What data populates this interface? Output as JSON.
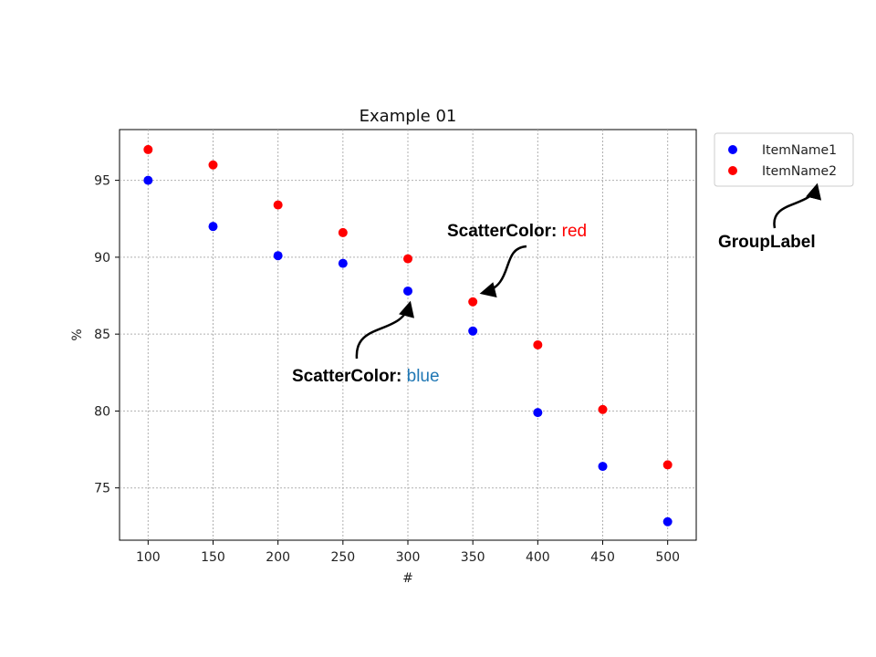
{
  "chart_data": {
    "type": "scatter",
    "title": "Example 01",
    "xlabel": "#",
    "ylabel": "%",
    "xlim": [
      78,
      522
    ],
    "ylim": [
      71.6,
      98.3
    ],
    "xticks": [
      100,
      150,
      200,
      250,
      300,
      350,
      400,
      450,
      500
    ],
    "yticks": [
      75,
      80,
      85,
      90,
      95
    ],
    "grid": true,
    "legend_position": "outside-top-right",
    "series": [
      {
        "name": "ItemName1",
        "color": "#0000ff",
        "x": [
          100,
          150,
          200,
          250,
          300,
          350,
          400,
          450,
          500
        ],
        "y": [
          95.0,
          92.0,
          90.1,
          89.6,
          87.8,
          85.2,
          79.9,
          76.4,
          72.8
        ]
      },
      {
        "name": "ItemName2",
        "color": "#ff0000",
        "x": [
          100,
          150,
          200,
          250,
          300,
          350,
          400,
          450,
          500
        ],
        "y": [
          97.0,
          96.0,
          93.4,
          91.6,
          89.9,
          87.1,
          84.3,
          80.1,
          76.5
        ]
      }
    ],
    "annotations": [
      {
        "key": "ScatterColor:",
        "value": "red",
        "value_color": "#ff0000"
      },
      {
        "key": "ScatterColor:",
        "value": "blue",
        "value_color": "#1f77b4"
      },
      {
        "key": "GroupLabel",
        "value": "",
        "value_color": "#000000"
      }
    ]
  }
}
